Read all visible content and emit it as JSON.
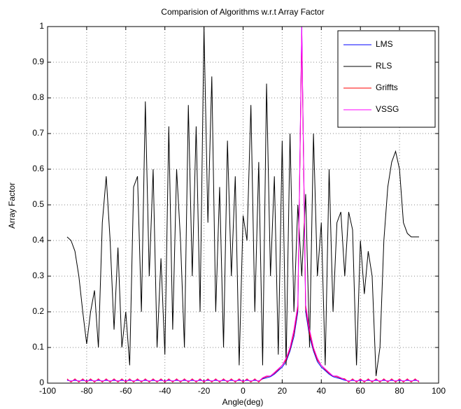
{
  "chart_data": {
    "type": "line",
    "title": "Comparision of Algorithms w.r.t Array Factor",
    "xlabel": "Angle(deg)",
    "ylabel": "Array Factor",
    "x": [
      -90,
      -88,
      -86,
      -84,
      -82,
      -80,
      -78,
      -76,
      -74,
      -72,
      -70,
      -68,
      -66,
      -64,
      -62,
      -60,
      -58,
      -56,
      -54,
      -52,
      -50,
      -48,
      -46,
      -44,
      -42,
      -40,
      -38,
      -36,
      -34,
      -32,
      -30,
      -28,
      -26,
      -24,
      -22,
      -20,
      -18,
      -16,
      -14,
      -12,
      -10,
      -8,
      -6,
      -4,
      -2,
      0,
      2,
      4,
      6,
      8,
      10,
      12,
      14,
      16,
      18,
      20,
      22,
      24,
      26,
      28,
      30,
      32,
      34,
      36,
      38,
      40,
      42,
      44,
      46,
      48,
      50,
      52,
      54,
      56,
      58,
      60,
      62,
      64,
      66,
      68,
      70,
      72,
      74,
      76,
      78,
      80,
      82,
      84,
      86,
      88,
      90
    ],
    "series": [
      {
        "name": "LMS",
        "color": "#0000ff",
        "values": [
          0.008,
          0.006,
          0.008,
          0.006,
          0.008,
          0.006,
          0.008,
          0.006,
          0.008,
          0.006,
          0.008,
          0.006,
          0.008,
          0.006,
          0.008,
          0.006,
          0.008,
          0.006,
          0.008,
          0.006,
          0.008,
          0.006,
          0.008,
          0.006,
          0.008,
          0.006,
          0.008,
          0.006,
          0.008,
          0.006,
          0.008,
          0.006,
          0.008,
          0.006,
          0.008,
          0.006,
          0.008,
          0.006,
          0.008,
          0.006,
          0.008,
          0.006,
          0.008,
          0.006,
          0.008,
          0.006,
          0.008,
          0.006,
          0.008,
          0.006,
          0.012,
          0.015,
          0.018,
          0.025,
          0.035,
          0.045,
          0.06,
          0.09,
          0.13,
          0.2,
          1,
          0.2,
          0.13,
          0.09,
          0.06,
          0.045,
          0.035,
          0.025,
          0.018,
          0.015,
          0.012,
          0.008,
          0.006,
          0.008,
          0.006,
          0.008,
          0.006,
          0.008,
          0.006,
          0.008,
          0.006,
          0.008,
          0.006,
          0.008,
          0.006,
          0.008,
          0.006,
          0.008,
          0.006,
          0.008,
          0.006
        ]
      },
      {
        "name": "RLS",
        "color": "#000000",
        "values": [
          0.41,
          0.4,
          0.37,
          0.3,
          0.2,
          0.11,
          0.2,
          0.26,
          0.1,
          0.45,
          0.58,
          0.4,
          0.15,
          0.38,
          0.1,
          0.2,
          0.05,
          0.55,
          0.58,
          0.2,
          0.79,
          0.3,
          0.6,
          0.1,
          0.35,
          0.08,
          0.72,
          0.15,
          0.6,
          0.4,
          0.1,
          0.78,
          0.3,
          0.72,
          0.2,
          1.0,
          0.45,
          0.86,
          0.2,
          0.55,
          0.1,
          0.68,
          0.3,
          0.58,
          0.05,
          0.47,
          0.4,
          0.78,
          0.2,
          0.62,
          0.05,
          0.84,
          0.3,
          0.58,
          0.08,
          0.68,
          0.05,
          0.7,
          0.2,
          0.5,
          0.3,
          0.53,
          0.1,
          0.7,
          0.3,
          0.45,
          0.05,
          0.6,
          0.2,
          0.45,
          0.48,
          0.3,
          0.48,
          0.43,
          0.05,
          0.4,
          0.25,
          0.37,
          0.3,
          0.02,
          0.1,
          0.4,
          0.55,
          0.62,
          0.65,
          0.6,
          0.45,
          0.42,
          0.41,
          0.41,
          0.41
        ]
      },
      {
        "name": "Griffts",
        "color": "#ff0000",
        "values": [
          0.012,
          0.003,
          0.012,
          0.003,
          0.012,
          0.003,
          0.012,
          0.003,
          0.012,
          0.003,
          0.012,
          0.003,
          0.012,
          0.003,
          0.012,
          0.003,
          0.012,
          0.003,
          0.012,
          0.003,
          0.012,
          0.003,
          0.012,
          0.003,
          0.012,
          0.003,
          0.012,
          0.003,
          0.012,
          0.003,
          0.012,
          0.003,
          0.012,
          0.003,
          0.012,
          0.003,
          0.012,
          0.003,
          0.012,
          0.003,
          0.012,
          0.003,
          0.012,
          0.003,
          0.012,
          0.003,
          0.012,
          0.003,
          0.012,
          0.003,
          0.014,
          0.018,
          0.02,
          0.028,
          0.038,
          0.05,
          0.065,
          0.095,
          0.14,
          0.21,
          0.98,
          0.21,
          0.14,
          0.095,
          0.065,
          0.05,
          0.038,
          0.028,
          0.02,
          0.018,
          0.014,
          0.012,
          0.003,
          0.012,
          0.003,
          0.012,
          0.003,
          0.012,
          0.003,
          0.012,
          0.003,
          0.012,
          0.003,
          0.012,
          0.003,
          0.012,
          0.003,
          0.012,
          0.003,
          0.012,
          0.003
        ]
      },
      {
        "name": "VSSG",
        "color": "#ff00ff",
        "values": [
          0.01,
          0.005,
          0.01,
          0.005,
          0.01,
          0.005,
          0.01,
          0.005,
          0.01,
          0.005,
          0.01,
          0.005,
          0.01,
          0.005,
          0.01,
          0.005,
          0.01,
          0.005,
          0.01,
          0.005,
          0.01,
          0.005,
          0.01,
          0.005,
          0.01,
          0.005,
          0.01,
          0.005,
          0.01,
          0.005,
          0.01,
          0.005,
          0.01,
          0.005,
          0.01,
          0.005,
          0.01,
          0.005,
          0.01,
          0.005,
          0.01,
          0.005,
          0.01,
          0.005,
          0.01,
          0.005,
          0.01,
          0.005,
          0.01,
          0.005,
          0.015,
          0.02,
          0.02,
          0.03,
          0.04,
          0.05,
          0.07,
          0.1,
          0.15,
          0.22,
          1,
          0.22,
          0.15,
          0.1,
          0.07,
          0.05,
          0.04,
          0.03,
          0.02,
          0.02,
          0.015,
          0.01,
          0.005,
          0.01,
          0.005,
          0.01,
          0.005,
          0.01,
          0.005,
          0.01,
          0.005,
          0.01,
          0.005,
          0.01,
          0.005,
          0.01,
          0.005,
          0.01,
          0.005,
          0.01,
          0.005
        ]
      }
    ],
    "xlim": [
      -100,
      100
    ],
    "xticks": [
      -100,
      -80,
      -60,
      -40,
      -20,
      0,
      20,
      40,
      60,
      80,
      100
    ],
    "ylim": [
      0,
      1
    ],
    "yticks": [
      0,
      0.1,
      0.2,
      0.3,
      0.4,
      0.5,
      0.6,
      0.7,
      0.8,
      0.9,
      1
    ],
    "grid": true,
    "legend": "upper right"
  }
}
